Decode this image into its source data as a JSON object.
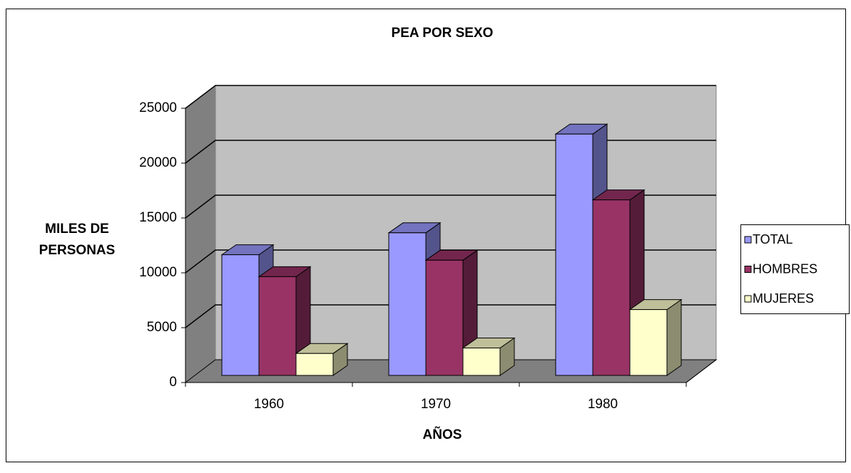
{
  "chart_data": {
    "type": "bar3d",
    "title": "PEA POR SEXO",
    "x_label": "AÑOS",
    "y_label_lines": [
      "MILES DE",
      "PERSONAS"
    ],
    "categories": [
      "1960",
      "1970",
      "1980"
    ],
    "series": [
      {
        "name": "TOTAL",
        "color": "#9999ff",
        "values": [
          11000,
          13000,
          22000
        ]
      },
      {
        "name": "HOMBRES",
        "color": "#993366",
        "values": [
          9000,
          10500,
          16000
        ]
      },
      {
        "name": "MUJERES",
        "color": "#ffffcc",
        "values": [
          2000,
          2500,
          6000
        ]
      }
    ],
    "ylim": [
      0,
      25000
    ],
    "yticks": [
      0,
      5000,
      10000,
      15000,
      20000,
      25000
    ],
    "grid": true,
    "legend": "right"
  }
}
